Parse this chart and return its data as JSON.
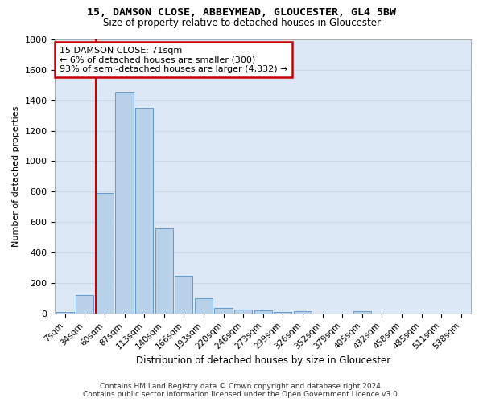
{
  "title": "15, DAMSON CLOSE, ABBEYMEAD, GLOUCESTER, GL4 5BW",
  "subtitle": "Size of property relative to detached houses in Gloucester",
  "xlabel": "Distribution of detached houses by size in Gloucester",
  "ylabel": "Number of detached properties",
  "bar_color": "#b8d0e8",
  "bar_edge_color": "#6699cc",
  "bg_color": "#dce8f5",
  "grid_color": "#c8d8ec",
  "categories": [
    "7sqm",
    "34sqm",
    "60sqm",
    "87sqm",
    "113sqm",
    "140sqm",
    "166sqm",
    "193sqm",
    "220sqm",
    "246sqm",
    "273sqm",
    "299sqm",
    "326sqm",
    "352sqm",
    "379sqm",
    "405sqm",
    "432sqm",
    "458sqm",
    "485sqm",
    "511sqm",
    "538sqm"
  ],
  "values": [
    10,
    120,
    790,
    1450,
    1350,
    560,
    250,
    100,
    35,
    25,
    20,
    10,
    15,
    0,
    0,
    15,
    0,
    0,
    0,
    0,
    0
  ],
  "vline_x": 1.55,
  "annotation_text": "15 DAMSON CLOSE: 71sqm\n← 6% of detached houses are smaller (300)\n93% of semi-detached houses are larger (4,332) →",
  "annotation_box_color": "#ffffff",
  "annotation_box_edge": "#cc0000",
  "vline_color": "#cc0000",
  "footer_line1": "Contains HM Land Registry data © Crown copyright and database right 2024.",
  "footer_line2": "Contains public sector information licensed under the Open Government Licence v3.0.",
  "ylim_max": 1800,
  "yticks": [
    0,
    200,
    400,
    600,
    800,
    1000,
    1200,
    1400,
    1600,
    1800
  ]
}
